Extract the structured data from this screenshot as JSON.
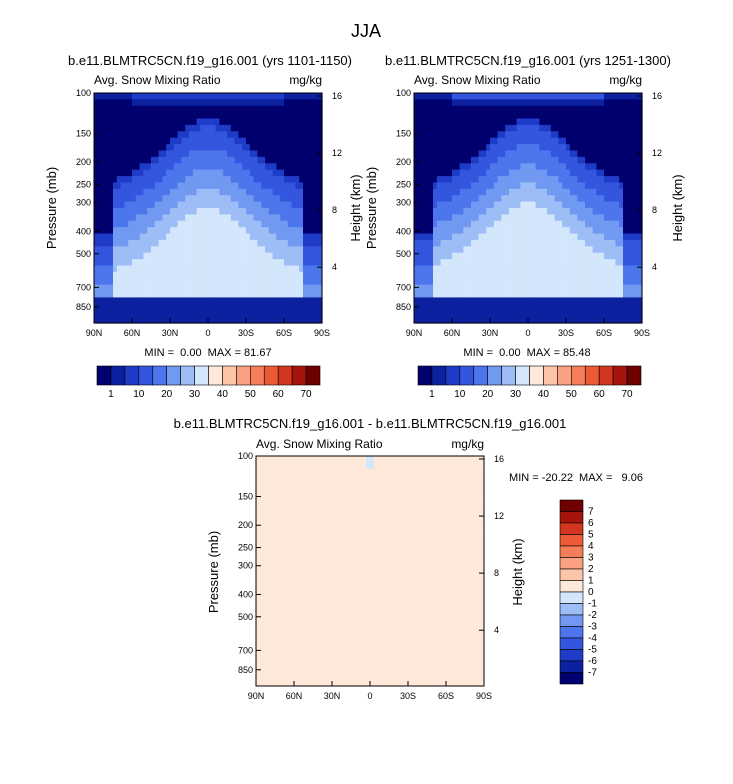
{
  "page_title": "JJA",
  "colors": {
    "abs": [
      "#00006f",
      "#0c21a0",
      "#1e3cc8",
      "#3455de",
      "#4d76ec",
      "#7199f2",
      "#9dbdf7",
      "#d3e6fb",
      "#fde8da",
      "#fcc5a8",
      "#f9a180",
      "#f57e58",
      "#ec5a36",
      "#d3361f",
      "#a5150d",
      "#6e0000"
    ],
    "diff": [
      "#00006f",
      "#0c21a0",
      "#1e3cc8",
      "#3455de",
      "#4d76ec",
      "#7199f2",
      "#9dbdf7",
      "#d3e6fb",
      "#fde8da",
      "#fcc5a8",
      "#f9a180",
      "#f57e58",
      "#ec5a36",
      "#d3361f",
      "#a5150d",
      "#6e0000"
    ]
  },
  "chart_data": [
    {
      "type": "heatmap",
      "title": "b.e11.BLMTRC5CN.f19_g16.001 (yrs 1101-1150)",
      "left_label": "Avg. Snow Mixing Ratio",
      "units": "mg/kg",
      "ylabel": "Pressure (mb)",
      "ylabel_right": "Height (km)",
      "x_ticks": [
        "90N",
        "60N",
        "30N",
        "0",
        "30S",
        "60S",
        "90S"
      ],
      "x_values": [
        90,
        60,
        30,
        0,
        -30,
        -60,
        -90
      ],
      "y_ticks": [
        "100",
        "150",
        "200",
        "250",
        "300",
        "400",
        "500",
        "700",
        "850"
      ],
      "y_values": [
        100,
        150,
        200,
        250,
        300,
        400,
        500,
        700,
        850
      ],
      "y_right_ticks": [
        "16",
        "12",
        "8",
        "4"
      ],
      "y_right_values": [
        16,
        12,
        8,
        4
      ],
      "ylim": [
        1000,
        100
      ],
      "stats": "MIN =  0.00  MAX = 81.67",
      "min": 0.0,
      "max": 81.67
    },
    {
      "type": "heatmap",
      "title": "b.e11.BLMTRC5CN.f19_g16.001 (yrs 1251-1300)",
      "left_label": "Avg. Snow Mixing Ratio",
      "units": "mg/kg",
      "ylabel": "Pressure (mb)",
      "ylabel_right": "Height (km)",
      "x_ticks": [
        "90N",
        "60N",
        "30N",
        "0",
        "30S",
        "60S",
        "90S"
      ],
      "x_values": [
        90,
        60,
        30,
        0,
        -30,
        -60,
        -90
      ],
      "y_ticks": [
        "100",
        "150",
        "200",
        "250",
        "300",
        "400",
        "500",
        "700",
        "850"
      ],
      "y_values": [
        100,
        150,
        200,
        250,
        300,
        400,
        500,
        700,
        850
      ],
      "y_right_ticks": [
        "16",
        "12",
        "8",
        "4"
      ],
      "y_right_values": [
        16,
        12,
        8,
        4
      ],
      "ylim": [
        1000,
        100
      ],
      "stats": "MIN =  0.00  MAX = 85.48",
      "min": 0.0,
      "max": 85.48
    },
    {
      "type": "heatmap",
      "title": "b.e11.BLMTRC5CN.f19_g16.001 - b.e11.BLMTRC5CN.f19_g16.001",
      "left_label": "Avg. Snow Mixing Ratio",
      "units": "mg/kg",
      "ylabel": "Pressure (mb)",
      "ylabel_right": "Height (km)",
      "x_ticks": [
        "90N",
        "60N",
        "30N",
        "0",
        "30S",
        "60S",
        "90S"
      ],
      "x_values": [
        90,
        60,
        30,
        0,
        -30,
        -60,
        -90
      ],
      "y_ticks": [
        "100",
        "150",
        "200",
        "250",
        "300",
        "400",
        "500",
        "700",
        "850"
      ],
      "y_values": [
        100,
        150,
        200,
        250,
        300,
        400,
        500,
        700,
        850
      ],
      "y_right_ticks": [
        "16",
        "12",
        "8",
        "4"
      ],
      "y_right_values": [
        16,
        12,
        8,
        4
      ],
      "ylim": [
        1000,
        100
      ],
      "stats": "MIN = -20.22  MAX =   9.06",
      "min": -20.22,
      "max": 9.06
    }
  ],
  "colorbar_abs": {
    "labels": [
      "1",
      "10",
      "20",
      "30",
      "40",
      "50",
      "60",
      "70"
    ]
  },
  "colorbar_diff": {
    "labels": [
      "7",
      "6",
      "5",
      "4",
      "3",
      "2",
      "1",
      "0",
      "-1",
      "-2",
      "-3",
      "-4",
      "-5",
      "-6",
      "-7"
    ]
  }
}
